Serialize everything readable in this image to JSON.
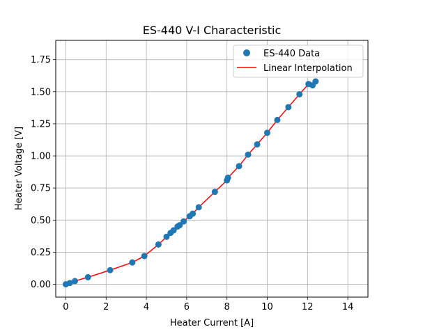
{
  "chart_data": {
    "type": "scatter",
    "title": "ES-440 V-I Characteristic",
    "xlabel": "Heater Current [A]",
    "ylabel": "Heater Voltage [V]",
    "xlim": [
      -0.5,
      15.0
    ],
    "ylim": [
      -0.1,
      1.9
    ],
    "xticks": [
      0,
      2,
      4,
      6,
      8,
      10,
      12,
      14
    ],
    "yticks": [
      0.0,
      0.25,
      0.5,
      0.75,
      1.0,
      1.25,
      1.5,
      1.75
    ],
    "xtick_labels": [
      "0",
      "2",
      "4",
      "6",
      "8",
      "10",
      "12",
      "14"
    ],
    "ytick_labels": [
      "0.00",
      "0.25",
      "0.50",
      "0.75",
      "1.00",
      "1.25",
      "1.50",
      "1.75"
    ],
    "grid": true,
    "legend_position": "top-right",
    "series": [
      {
        "name": "ES-440 Data",
        "kind": "scatter",
        "color": "#1f77b4",
        "x": [
          0.0,
          0.2,
          0.45,
          1.1,
          2.2,
          3.3,
          3.9,
          4.6,
          5.0,
          5.2,
          5.35,
          5.55,
          5.65,
          5.85,
          6.15,
          6.3,
          6.6,
          7.4,
          8.0,
          8.05,
          8.6,
          9.05,
          9.5,
          10.0,
          10.5,
          11.05,
          11.6,
          12.05,
          12.25,
          12.4
        ],
        "y": [
          0.0,
          0.01,
          0.025,
          0.055,
          0.11,
          0.17,
          0.22,
          0.31,
          0.37,
          0.4,
          0.42,
          0.45,
          0.46,
          0.49,
          0.53,
          0.55,
          0.6,
          0.72,
          0.81,
          0.83,
          0.92,
          1.01,
          1.09,
          1.18,
          1.28,
          1.38,
          1.48,
          1.56,
          1.55,
          1.58
        ]
      },
      {
        "name": "Linear Interpolation",
        "kind": "line",
        "color": "#ff0000",
        "x": [
          0.0,
          0.2,
          0.45,
          1.1,
          2.2,
          3.3,
          3.9,
          4.6,
          5.0,
          5.2,
          5.35,
          5.55,
          5.65,
          5.85,
          6.15,
          6.3,
          6.6,
          7.4,
          8.0,
          8.05,
          8.6,
          9.05,
          9.5,
          10.0,
          10.5,
          11.05,
          11.6,
          12.05,
          12.25,
          12.4
        ],
        "y": [
          0.0,
          0.01,
          0.025,
          0.055,
          0.11,
          0.17,
          0.22,
          0.31,
          0.37,
          0.4,
          0.42,
          0.45,
          0.46,
          0.49,
          0.53,
          0.55,
          0.6,
          0.72,
          0.81,
          0.83,
          0.92,
          1.01,
          1.09,
          1.18,
          1.28,
          1.38,
          1.48,
          1.56,
          1.55,
          1.58
        ]
      }
    ]
  }
}
